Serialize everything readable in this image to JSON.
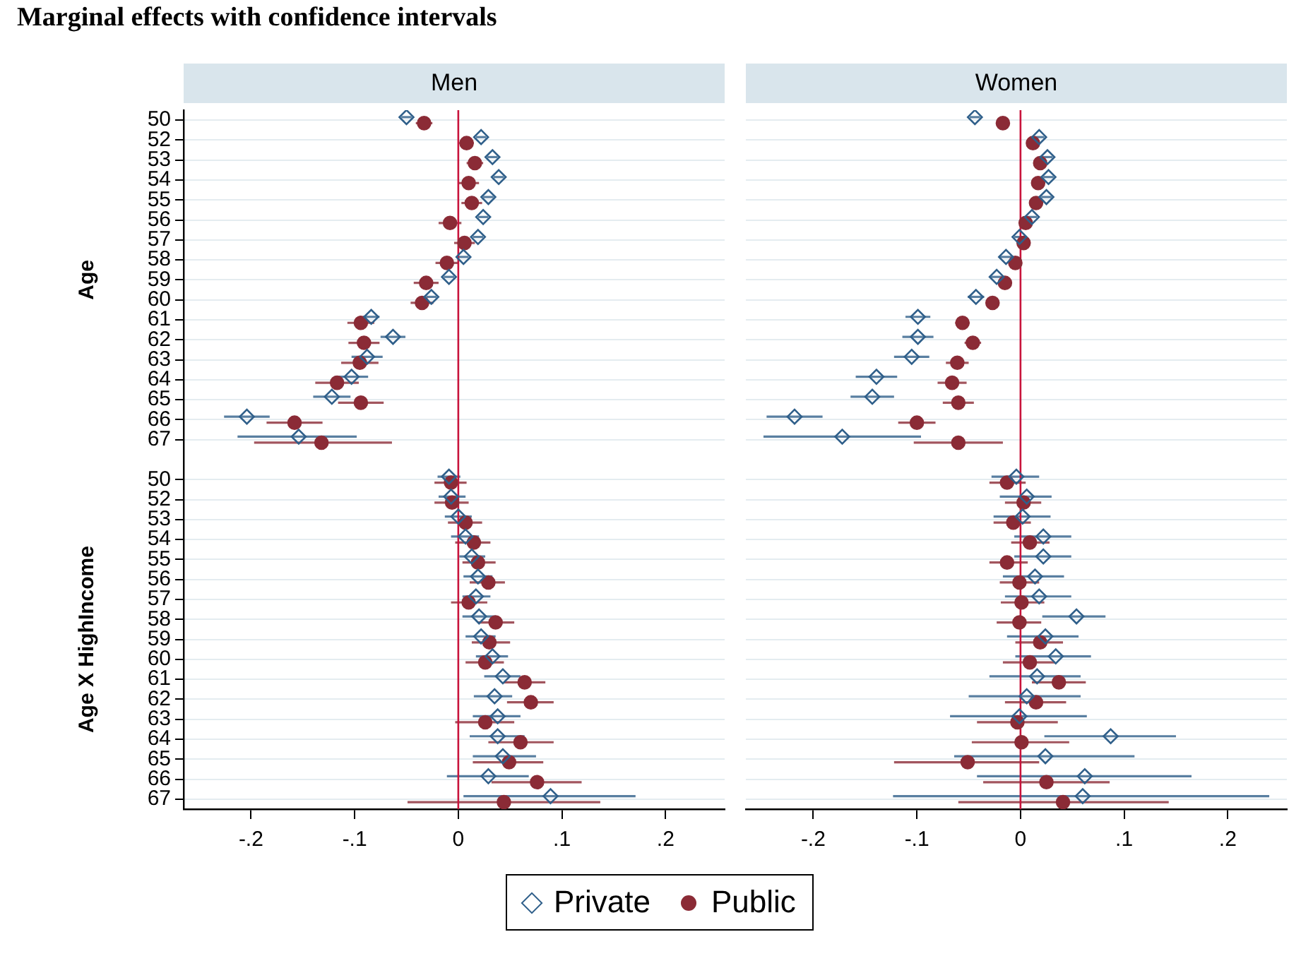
{
  "chart_data": [
    {
      "type": "scatter",
      "orientation": "horizontal",
      "title": "Men",
      "annotations": [
        "Marginal effects with confidence intervals",
        "Age",
        "Age X HighIncome"
      ],
      "categories": [
        "50",
        "52",
        "53",
        "54",
        "55",
        "56",
        "57",
        "58",
        "59",
        "60",
        "61",
        "62",
        "63",
        "64",
        "65",
        "66",
        "67",
        null,
        "50",
        "52",
        "53",
        "54",
        "55",
        "56",
        "57",
        "58",
        "59",
        "60",
        "61",
        "62",
        "63",
        "64",
        "65",
        "66",
        "67"
      ],
      "xlim": [
        -0.265,
        0.257
      ],
      "xticks": [
        {
          "value": -0.2,
          "label": "-.2"
        },
        {
          "value": -0.1,
          "label": "-.1"
        },
        0,
        {
          "value": 0.1,
          "label": ".1"
        },
        {
          "value": 0.2,
          "label": ".2"
        }
      ],
      "grid": "y",
      "legend": "bottom",
      "tick_labels": true,
      "ref_lines": [
        {
          "axis": "x",
          "value": 0,
          "color": "#c8143c"
        }
      ],
      "series": [
        {
          "name": "Private",
          "color": "#2f5f8a",
          "marker": "diamond",
          "values": [
            -0.05,
            0.022,
            0.033,
            0.039,
            0.029,
            0.024,
            0.019,
            0.005,
            -0.009,
            -0.026,
            -0.084,
            -0.063,
            -0.088,
            -0.103,
            -0.122,
            -0.204,
            -0.154,
            null,
            -0.009,
            -0.007,
            0,
            0.007,
            0.013,
            0.019,
            0.017,
            0.02,
            0.022,
            0.033,
            0.043,
            0.035,
            0.038,
            0.038,
            0.043,
            0.029,
            0.089
          ],
          "errors": [
            0.005,
            0.005,
            0.005,
            0.005,
            0.005,
            0.005,
            0.005,
            0.005,
            0.005,
            0.005,
            0.008,
            0.012,
            0.015,
            0.016,
            0.018,
            0.022,
            [
              -0.213,
              -0.098
            ],
            null,
            [
              -0.02,
              0.002
            ],
            [
              -0.019,
              0.007
            ],
            [
              -0.013,
              0.013
            ],
            [
              -0.007,
              0.02
            ],
            [
              0.001,
              0.026
            ],
            [
              0.005,
              0.033
            ],
            [
              0.004,
              0.031
            ],
            [
              0.004,
              0.036
            ],
            [
              0.007,
              0.036
            ],
            [
              0.017,
              0.048
            ],
            [
              0.025,
              0.06
            ],
            [
              0.015,
              0.052
            ],
            [
              0.014,
              0.06
            ],
            [
              0.011,
              0.064
            ],
            [
              0.014,
              0.075
            ],
            [
              -0.011,
              0.068
            ],
            [
              0.005,
              0.171
            ]
          ]
        },
        {
          "name": "Public",
          "color": "#8b2b36",
          "marker": "circle",
          "values": [
            -0.033,
            0.008,
            0.016,
            0.01,
            0.013,
            -0.008,
            0.006,
            -0.011,
            -0.031,
            -0.035,
            -0.094,
            -0.091,
            -0.095,
            -0.117,
            -0.094,
            -0.158,
            -0.132,
            null,
            -0.007,
            -0.006,
            0.007,
            0.015,
            0.019,
            0.029,
            0.01,
            0.036,
            0.03,
            0.026,
            0.064,
            0.07,
            0.026,
            0.06,
            0.049,
            0.076,
            0.044
          ],
          "errors": [
            0.008,
            0.007,
            0.008,
            0.01,
            0.01,
            0.011,
            0.01,
            0.011,
            0.012,
            0.011,
            0.013,
            0.015,
            0.018,
            0.021,
            0.022,
            0.027,
            [
              -0.197,
              -0.064
            ],
            null,
            [
              -0.023,
              0.008
            ],
            [
              -0.023,
              0.01
            ],
            [
              -0.01,
              0.023
            ],
            [
              -0.003,
              0.031
            ],
            [
              0.004,
              0.036
            ],
            [
              0.011,
              0.045
            ],
            [
              -0.007,
              0.028
            ],
            [
              0.019,
              0.054
            ],
            [
              0.013,
              0.05
            ],
            [
              0.007,
              0.044
            ],
            [
              0.044,
              0.084
            ],
            [
              0.047,
              0.092
            ],
            [
              -0.003,
              0.054
            ],
            [
              0.029,
              0.092
            ],
            [
              0.014,
              0.082
            ],
            [
              0.032,
              0.119
            ],
            [
              -0.049,
              0.137
            ]
          ]
        }
      ]
    },
    {
      "type": "scatter",
      "orientation": "horizontal",
      "title": "Women",
      "categories": [
        "50",
        "52",
        "53",
        "54",
        "55",
        "56",
        "57",
        "58",
        "59",
        "60",
        "61",
        "62",
        "63",
        "64",
        "65",
        "66",
        "67",
        null,
        "50",
        "52",
        "53",
        "54",
        "55",
        "56",
        "57",
        "58",
        "59",
        "60",
        "61",
        "62",
        "63",
        "64",
        "65",
        "66",
        "67"
      ],
      "xlim": [
        -0.265,
        0.257
      ],
      "xticks": [
        {
          "value": -0.2,
          "label": "-.2"
        },
        {
          "value": -0.1,
          "label": "-.1"
        },
        0,
        {
          "value": 0.1,
          "label": ".1"
        },
        {
          "value": 0.2,
          "label": ".2"
        }
      ],
      "grid": "y",
      "tick_labels": "x",
      "ref_lines": [
        {
          "axis": "x",
          "value": 0,
          "color": "#c8143c"
        }
      ],
      "series": [
        {
          "color": "#2f5f8a",
          "marker": "diamond",
          "values": [
            -0.044,
            0.018,
            0.026,
            0.027,
            0.025,
            0.011,
            -0.001,
            -0.014,
            -0.023,
            -0.043,
            -0.099,
            -0.099,
            -0.105,
            -0.139,
            -0.143,
            -0.218,
            -0.172,
            null,
            -0.004,
            0.006,
            0.002,
            0.022,
            0.022,
            0.014,
            0.018,
            0.054,
            0.024,
            0.034,
            0.016,
            0.006,
            -0.001,
            0.087,
            0.024,
            0.062,
            0.06
          ],
          "errors": [
            0.005,
            0.005,
            0.005,
            0.005,
            0.005,
            0.005,
            0.005,
            0.007,
            0.007,
            0.008,
            0.012,
            0.015,
            0.017,
            0.02,
            0.021,
            0.027,
            [
              -0.248,
              -0.096
            ],
            null,
            [
              -0.028,
              0.018
            ],
            [
              -0.02,
              0.03
            ],
            [
              -0.026,
              0.029
            ],
            [
              -0.006,
              0.049
            ],
            [
              -0.006,
              0.049
            ],
            [
              -0.017,
              0.042
            ],
            [
              -0.015,
              0.049
            ],
            [
              0.021,
              0.082
            ],
            [
              -0.013,
              0.056
            ],
            [
              -0.005,
              0.068
            ],
            [
              -0.03,
              0.058
            ],
            [
              -0.05,
              0.058
            ],
            [
              -0.068,
              0.064
            ],
            [
              0.023,
              0.15
            ],
            [
              -0.064,
              0.11
            ],
            [
              -0.042,
              0.165
            ],
            [
              -0.123,
              0.24
            ]
          ]
        },
        {
          "color": "#8b2b36",
          "marker": "circle",
          "values": [
            -0.017,
            0.012,
            0.019,
            0.017,
            0.015,
            0.005,
            0.003,
            -0.005,
            -0.015,
            -0.027,
            -0.056,
            -0.046,
            -0.061,
            -0.066,
            -0.06,
            -0.1,
            -0.06,
            null,
            -0.013,
            0.003,
            -0.007,
            0.009,
            -0.013,
            -0.001,
            0.001,
            -0.001,
            0.019,
            0.009,
            0.037,
            0.015,
            -0.003,
            0.001,
            -0.051,
            0.025,
            0.041
          ],
          "errors": [
            0.005,
            0.005,
            0.005,
            0.005,
            0.005,
            0.005,
            0.005,
            0.005,
            0.005,
            0.005,
            0.007,
            0.008,
            0.011,
            0.014,
            0.015,
            0.018,
            [
              -0.103,
              -0.017
            ],
            null,
            [
              -0.03,
              0.005
            ],
            [
              -0.015,
              0.02
            ],
            [
              -0.026,
              0.01
            ],
            [
              -0.009,
              0.028
            ],
            [
              -0.03,
              0.007
            ],
            [
              -0.02,
              0.018
            ],
            [
              -0.019,
              0.023
            ],
            [
              -0.023,
              0.02
            ],
            [
              -0.005,
              0.041
            ],
            [
              -0.017,
              0.033
            ],
            [
              0.011,
              0.063
            ],
            [
              -0.015,
              0.044
            ],
            [
              -0.042,
              0.036
            ],
            [
              -0.047,
              0.047
            ],
            [
              -0.122,
              0.018
            ],
            [
              -0.036,
              0.086
            ],
            [
              -0.06,
              0.143
            ]
          ]
        }
      ]
    }
  ]
}
